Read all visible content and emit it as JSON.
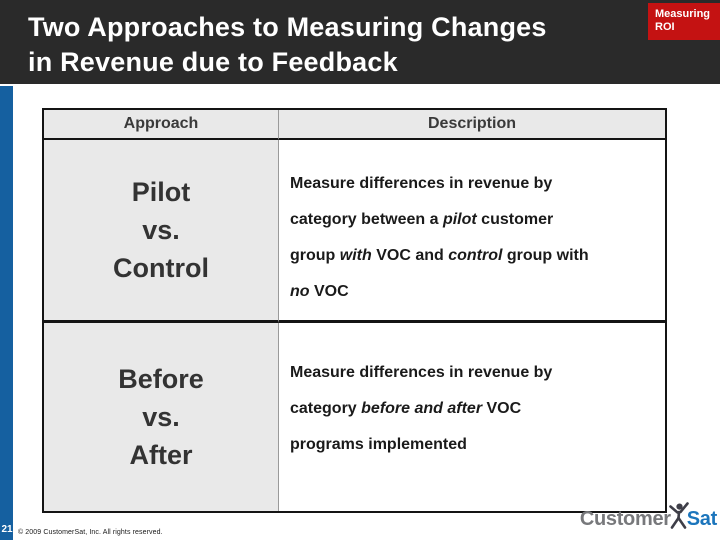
{
  "colors": {
    "header_bg": "#2a2a2a",
    "badge_red": "#c41212",
    "accent_blue": "#1560a0",
    "cell_gray": "#e9e9e9",
    "border_black": "#141414",
    "logo_gray": "#77787b",
    "logo_blue": "#1b75bc"
  },
  "header": {
    "title_line1": "Two Approaches to Measuring Changes",
    "title_line2": "in Revenue due to Feedback",
    "badge_line1": "Measuring",
    "badge_line2": "ROI"
  },
  "table": {
    "columns": [
      "Approach",
      "Description"
    ],
    "rows": [
      {
        "approach_lines": [
          "Pilot",
          "vs.",
          "Control"
        ],
        "description_lines": [
          [
            {
              "t": "Measure differences in revenue by",
              "i": false
            }
          ],
          [
            {
              "t": "category between a ",
              "i": false
            },
            {
              "t": "pilot",
              "i": true
            },
            {
              "t": " customer",
              "i": false
            }
          ],
          [
            {
              "t": "group ",
              "i": false
            },
            {
              "t": "with",
              "i": true
            },
            {
              "t": " VOC and ",
              "i": false
            },
            {
              "t": "control",
              "i": true
            },
            {
              "t": " group with",
              "i": false
            }
          ],
          [
            {
              "t": "no",
              "i": true
            },
            {
              "t": " VOC",
              "i": false
            }
          ]
        ]
      },
      {
        "approach_lines": [
          "Before",
          "vs.",
          "After"
        ],
        "description_lines": [
          [
            {
              "t": "Measure differences in revenue by",
              "i": false
            }
          ],
          [
            {
              "t": "category ",
              "i": false
            },
            {
              "t": "before and after",
              "i": true
            },
            {
              "t": " VOC",
              "i": false
            }
          ],
          [
            {
              "t": "programs implemented",
              "i": false
            }
          ]
        ]
      }
    ]
  },
  "footer": {
    "slide_number": "21",
    "copyright": "© 2009 CustomerSat, Inc.  All rights reserved.",
    "logo_customer": "Customer",
    "logo_sat": "Sat"
  }
}
